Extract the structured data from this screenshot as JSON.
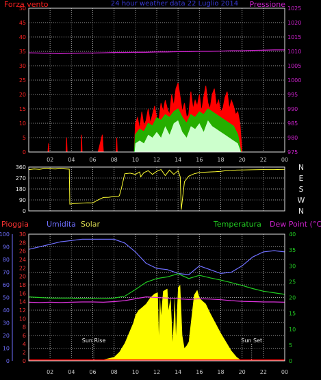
{
  "header": {
    "left_label": "Forza vento",
    "center_label": "24 hour weather data 22 Luglio 2014",
    "right_label": "Pressione"
  },
  "mid_header": {
    "pioggia": "Pioggia",
    "umidita": "Umidita",
    "solar": "Solar",
    "temperatura": "Temperatura",
    "dew_point": "Dew Point (°C)"
  },
  "annotations": {
    "sun_rise": "Sun Rise",
    "sun_set": "Sun Set"
  },
  "colors": {
    "background": "#000000",
    "grid": "#9a9a9a",
    "wind": "#ff0000",
    "wind_avg": "#00cc00",
    "wind_fill": "#ccffcc",
    "pressure": "#cc22cc",
    "direction": "#ffff33",
    "humidity": "#6f6fff",
    "solar": "#ffff00",
    "temperature": "#22cc22",
    "dew_point": "#dd33dd",
    "rain": "#ff0000",
    "left_axis_wind": "#ff2020",
    "right_axis_pressure": "#cc22cc",
    "axis_rain": "#ff3333",
    "axis_humidity": "#6f6fff",
    "axis_temp": "#22cc22"
  },
  "chart_data": [
    {
      "type": "area",
      "title": "24 hour weather data 22 Luglio 2014",
      "xlabel": "",
      "x_ticks": [
        "02",
        "04",
        "06",
        "08",
        "10",
        "12",
        "14",
        "16",
        "18",
        "20",
        "22",
        "00"
      ],
      "x_hours": [
        2,
        4,
        6,
        8,
        10,
        12,
        14,
        16,
        18,
        20,
        22,
        24
      ],
      "ylabel": "Forza vento",
      "ylim": [
        0,
        50
      ],
      "yticks": [
        0,
        5,
        10,
        15,
        20,
        25,
        30,
        35,
        40,
        45,
        50
      ],
      "y2label": "Pressione",
      "y2lim": [
        975,
        1025
      ],
      "y2ticks": [
        975,
        980,
        985,
        990,
        995,
        1000,
        1005,
        1010,
        1015,
        1020,
        1025
      ],
      "grid": true,
      "series": [
        {
          "name": "Forza vento",
          "role": "gust",
          "x": [
            0,
            1.8,
            1.85,
            1.9,
            3.5,
            3.55,
            3.6,
            4.9,
            4.95,
            5.0,
            6.5,
            6.7,
            6.9,
            7.0,
            8.2,
            8.25,
            8.3,
            9.9,
            10.0,
            10.2,
            10.4,
            10.6,
            10.8,
            11.0,
            11.2,
            11.4,
            11.6,
            11.8,
            12.0,
            12.2,
            12.4,
            12.6,
            12.8,
            13.0,
            13.2,
            13.4,
            13.6,
            13.8,
            14.0,
            14.2,
            14.4,
            14.6,
            14.8,
            15.0,
            15.2,
            15.4,
            15.6,
            15.8,
            16.0,
            16.2,
            16.4,
            16.6,
            16.8,
            17.0,
            17.2,
            17.4,
            17.6,
            17.8,
            18.0,
            18.2,
            18.4,
            18.6,
            18.8,
            19.0,
            19.2,
            19.4,
            19.6,
            19.8,
            19.9,
            20.0,
            24
          ],
          "values": [
            0,
            0,
            3,
            0,
            0,
            5,
            0,
            0,
            6,
            0,
            0,
            3,
            6,
            0,
            0,
            5,
            0,
            0,
            10,
            12,
            8,
            14,
            9,
            11,
            15,
            10,
            13,
            16,
            12,
            11,
            17,
            14,
            18,
            15,
            13,
            20,
            16,
            22,
            24,
            19,
            14,
            17,
            12,
            13,
            21,
            15,
            18,
            16,
            20,
            14,
            19,
            23,
            17,
            15,
            20,
            22,
            16,
            18,
            14,
            15,
            19,
            21,
            15,
            18,
            16,
            13,
            14,
            10,
            5,
            0,
            0
          ]
        },
        {
          "name": "",
          "role": "average",
          "x": [
            9.9,
            10.0,
            10.4,
            10.8,
            11.2,
            11.6,
            12.0,
            12.4,
            12.8,
            13.2,
            13.6,
            14.0,
            14.4,
            14.8,
            15.2,
            15.6,
            16.0,
            16.4,
            16.8,
            17.2,
            17.6,
            18.0,
            18.4,
            18.8,
            19.2,
            19.6,
            19.9
          ],
          "values": [
            0,
            6,
            8,
            7,
            10,
            9,
            12,
            11,
            13,
            12,
            14,
            15,
            12,
            10,
            13,
            12,
            14,
            13,
            15,
            14,
            13,
            12,
            11,
            10,
            9,
            6,
            0
          ]
        },
        {
          "name": "",
          "role": "speed",
          "x": [
            9.9,
            10.0,
            10.4,
            10.8,
            11.2,
            11.6,
            12.0,
            12.4,
            12.8,
            13.2,
            13.6,
            14.0,
            14.4,
            14.8,
            15.2,
            15.6,
            16.0,
            16.4,
            16.8,
            17.2,
            17.6,
            18.0,
            18.4,
            18.8,
            19.2,
            19.6,
            19.9
          ],
          "values": [
            0,
            3,
            4,
            3,
            6,
            5,
            7,
            5,
            9,
            6,
            10,
            11,
            7,
            5,
            9,
            8,
            10,
            7,
            11,
            9,
            8,
            7,
            6,
            5,
            4,
            3,
            0
          ]
        },
        {
          "name": "Pressione",
          "axis": "y2",
          "x": [
            0,
            1,
            2,
            3,
            4,
            5,
            6,
            7,
            8,
            9,
            10,
            11,
            12,
            13,
            14,
            15,
            16,
            17,
            18,
            19,
            20,
            21,
            22,
            23,
            24
          ],
          "values": [
            1009.5,
            1009.4,
            1009.3,
            1009.2,
            1009.3,
            1009.4,
            1009.4,
            1009.5,
            1009.6,
            1009.6,
            1009.7,
            1009.7,
            1009.8,
            1009.8,
            1009.9,
            1009.9,
            1010.0,
            1010.0,
            1010.1,
            1010.2,
            1010.2,
            1010.3,
            1010.4,
            1010.5,
            1010.5
          ]
        }
      ]
    },
    {
      "type": "line",
      "ylabel": "",
      "ylim": [
        0,
        360
      ],
      "yticks": [
        0,
        90,
        180,
        270,
        360
      ],
      "y2ticks": [
        "N",
        "W",
        "S",
        "E",
        "N"
      ],
      "grid": true,
      "series": [
        {
          "name": "",
          "x": [
            0,
            0.5,
            1,
            1.5,
            2,
            2.5,
            3,
            3.5,
            3.8,
            3.85,
            4.2,
            4.6,
            5,
            5.5,
            6,
            6.5,
            7,
            7.5,
            8,
            8.4,
            8.5,
            8.7,
            9,
            9.5,
            10,
            10.4,
            10.5,
            10.8,
            11.2,
            11.6,
            12,
            12.4,
            12.8,
            13.2,
            13.6,
            14,
            14.2,
            14.3,
            14.6,
            15,
            15.5,
            16,
            16.5,
            17,
            17.5,
            18,
            18.5,
            19,
            19.5,
            20,
            21,
            22,
            23,
            24
          ],
          "values": [
            340,
            345,
            342,
            348,
            346,
            344,
            347,
            345,
            343,
            55,
            60,
            62,
            64,
            66,
            65,
            90,
            110,
            112,
            118,
            120,
            125,
            190,
            305,
            310,
            300,
            320,
            280,
            315,
            330,
            300,
            325,
            340,
            290,
            335,
            300,
            330,
            280,
            10,
            240,
            285,
            305,
            315,
            318,
            320,
            322,
            325,
            330,
            332,
            335,
            336,
            338,
            340,
            340,
            342
          ]
        }
      ]
    },
    {
      "type": "line",
      "ylabel": "Umidita",
      "ylim": [
        0,
        100
      ],
      "yticks": [
        0,
        10,
        20,
        30,
        40,
        50,
        60,
        70,
        80,
        90,
        100
      ],
      "ylabel_rain": "Pioggia",
      "rain_ticks": [
        0,
        2,
        4,
        6,
        8,
        10,
        12,
        14,
        16,
        18,
        20,
        22,
        24,
        26,
        28,
        30
      ],
      "y2label": "Dew Point (°C)",
      "y2lim": [
        0,
        40
      ],
      "y2ticks": [
        0,
        5,
        10,
        15,
        20,
        25,
        30,
        35,
        40
      ],
      "grid": true,
      "series": [
        {
          "name": "Umidita",
          "axis": "humidity",
          "x": [
            0,
            1,
            2,
            3,
            4,
            5,
            6,
            7,
            8,
            9,
            10,
            11,
            12,
            13,
            14,
            15,
            16,
            17,
            18,
            19,
            20,
            21,
            22,
            23,
            24
          ],
          "values": [
            88,
            90,
            92,
            94,
            95,
            96,
            96,
            96,
            96,
            93,
            86,
            77,
            73,
            72,
            69,
            68,
            75,
            72,
            69,
            70,
            75,
            82,
            86,
            87,
            86
          ]
        },
        {
          "name": "Temperatura",
          "axis": "y2",
          "x": [
            0,
            1,
            2,
            3,
            4,
            5,
            6,
            7,
            8,
            9,
            10,
            11,
            12,
            13,
            14,
            15,
            16,
            17,
            18,
            19,
            20,
            21,
            22,
            23,
            24
          ],
          "values": [
            20.2,
            20.0,
            19.8,
            19.8,
            19.8,
            19.6,
            19.6,
            19.6,
            19.8,
            20.4,
            22.5,
            24.8,
            26.0,
            26.5,
            27.5,
            26.0,
            27.0,
            26.2,
            25.5,
            24.7,
            23.8,
            22.8,
            22.0,
            21.5,
            21.0
          ]
        },
        {
          "name": "Dew Point",
          "axis": "y2",
          "x": [
            0,
            1,
            2,
            3,
            4,
            5,
            6,
            7,
            8,
            9,
            10,
            11,
            12,
            13,
            14,
            15,
            16,
            17,
            18,
            19,
            20,
            21,
            22,
            23,
            24
          ],
          "values": [
            18.5,
            18.4,
            18.5,
            18.4,
            18.5,
            18.6,
            18.6,
            18.5,
            18.7,
            19.0,
            19.6,
            20.2,
            20.0,
            19.8,
            19.6,
            19.4,
            19.6,
            19.5,
            19.3,
            19.0,
            18.8,
            18.7,
            18.6,
            18.6,
            18.5
          ]
        },
        {
          "name": "Solar",
          "axis": "humidity",
          "x": [
            0,
            6,
            7,
            8,
            8.5,
            9,
            9.4,
            9.8,
            10,
            10.3,
            10.6,
            11,
            11.4,
            11.8,
            12.1,
            12.2,
            12.3,
            12.4,
            12.6,
            12.8,
            13,
            13.1,
            13.3,
            13.5,
            13.7,
            13.8,
            14,
            14.2,
            14.4,
            14.6,
            14.8,
            15,
            15.2,
            15.5,
            15.8,
            16,
            16.2,
            16.6,
            17,
            17.5,
            18,
            18.5,
            19,
            19.5,
            20,
            24
          ],
          "values": [
            0,
            0,
            1,
            3,
            7,
            14,
            22,
            30,
            36,
            40,
            42,
            45,
            50,
            53,
            54,
            20,
            52,
            36,
            55,
            56,
            57,
            40,
            50,
            15,
            52,
            20,
            58,
            60,
            20,
            10,
            12,
            15,
            30,
            52,
            56,
            50,
            48,
            45,
            38,
            30,
            22,
            15,
            8,
            3,
            0,
            0
          ]
        },
        {
          "name": "Pioggia",
          "axis": "rain",
          "x": [
            0,
            24
          ],
          "values": [
            0,
            0
          ]
        }
      ]
    }
  ]
}
